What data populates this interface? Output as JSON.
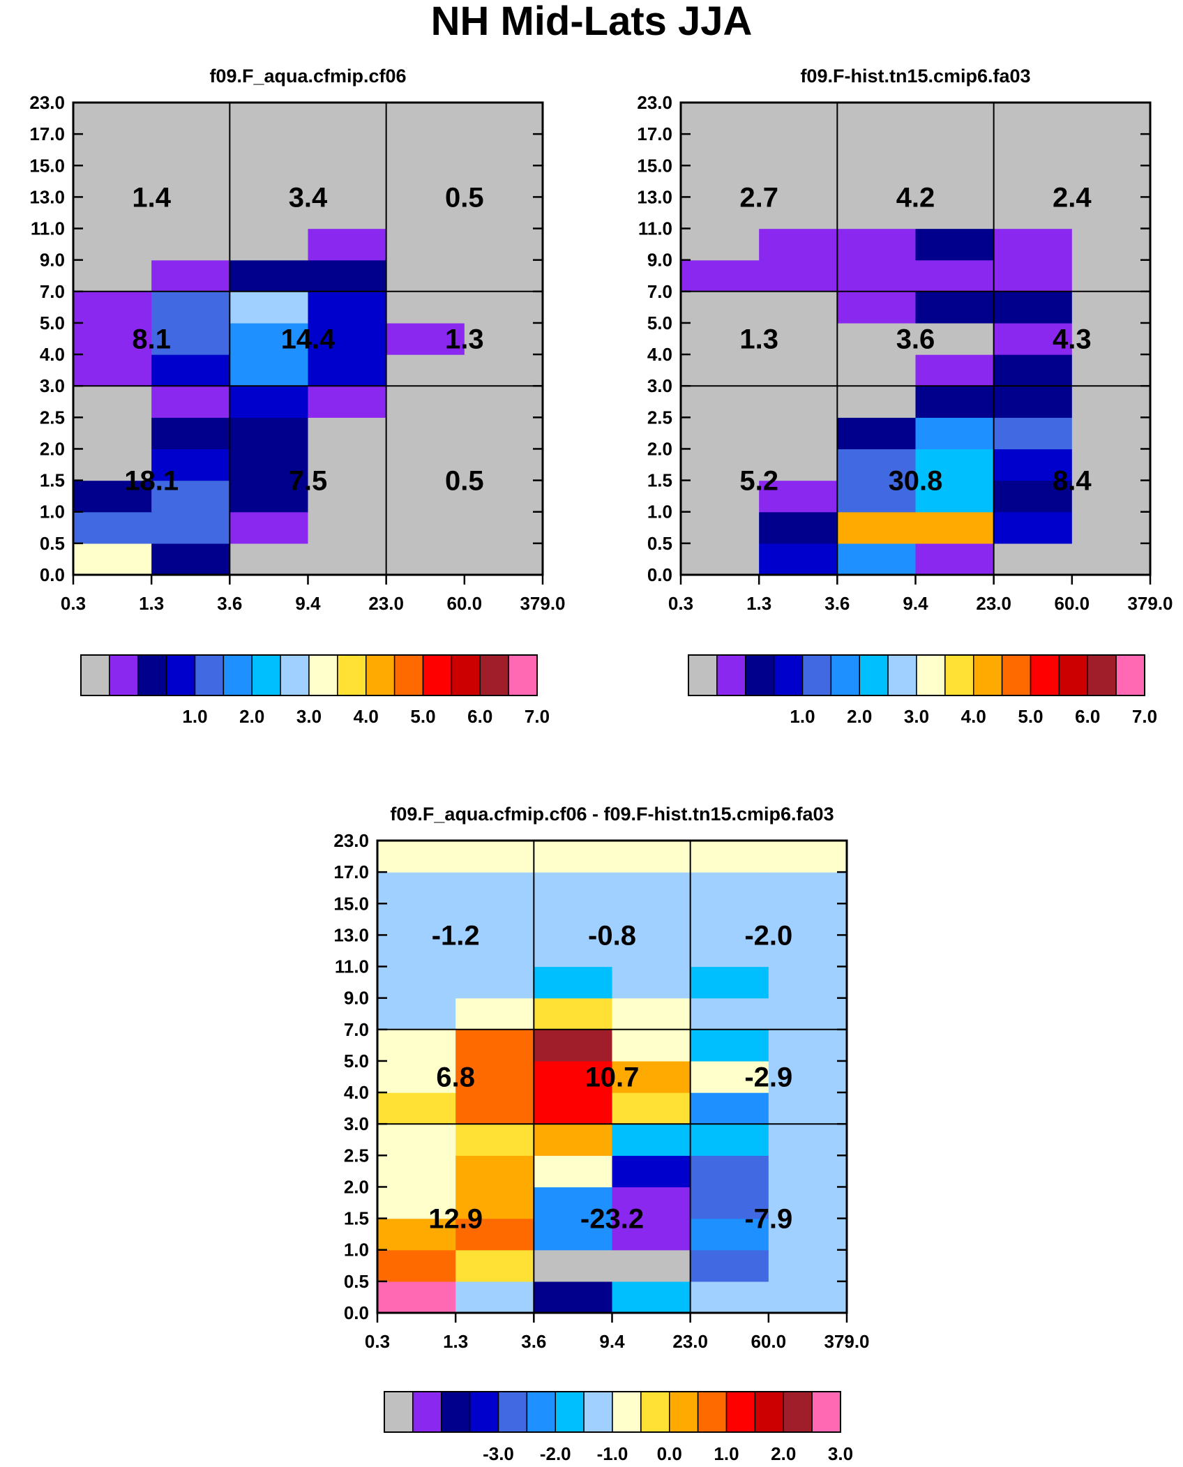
{
  "title": "NH Mid-Lats JJA",
  "x_tick_labels": [
    "0.3",
    "1.3",
    "3.6",
    "9.4",
    "23.0",
    "60.0",
    "379.0"
  ],
  "y_tick_labels": [
    "0.0",
    "0.5",
    "1.0",
    "1.5",
    "2.0",
    "2.5",
    "3.0",
    "4.0",
    "5.0",
    "7.0",
    "9.0",
    "11.0",
    "13.0",
    "15.0",
    "17.0",
    "23.0"
  ],
  "palette": [
    "#c0c0c0",
    "#8a28f0",
    "#00008c",
    "#0000cd",
    "#4169e1",
    "#1e90ff",
    "#00bfff",
    "#a0d0ff",
    "#ffffcc",
    "#ffe135",
    "#ffaa00",
    "#ff6a00",
    "#ff0000",
    "#cc0000",
    "#a01e2a",
    "#ff69b4"
  ],
  "chart_data": [
    {
      "type": "heatmap",
      "title": "f09.F_aqua.cfmip.cf06",
      "x_edges": [
        "0.3",
        "1.3",
        "3.6",
        "9.4",
        "23.0",
        "60.0",
        "379.0"
      ],
      "y_edges": [
        "0.0",
        "0.5",
        "1.0",
        "1.5",
        "2.0",
        "2.5",
        "3.0",
        "4.0",
        "5.0",
        "7.0",
        "9.0",
        "11.0",
        "13.0",
        "15.0",
        "17.0",
        "23.0"
      ],
      "cell_color_index_rows_bottom_to_top": [
        [
          8,
          2,
          0,
          0,
          0,
          0
        ],
        [
          4,
          4,
          1,
          0,
          0,
          0
        ],
        [
          2,
          4,
          2,
          0,
          0,
          0
        ],
        [
          0,
          3,
          2,
          0,
          0,
          0
        ],
        [
          0,
          2,
          2,
          0,
          0,
          0
        ],
        [
          0,
          1,
          3,
          1,
          0,
          0
        ],
        [
          1,
          3,
          5,
          3,
          0,
          0
        ],
        [
          1,
          4,
          5,
          3,
          1,
          0
        ],
        [
          1,
          4,
          7,
          3,
          0,
          0
        ],
        [
          0,
          1,
          2,
          2,
          0,
          0
        ],
        [
          0,
          0,
          0,
          1,
          0,
          0
        ],
        [
          0,
          0,
          0,
          0,
          0,
          0
        ],
        [
          0,
          0,
          0,
          0,
          0,
          0
        ],
        [
          0,
          0,
          0,
          0,
          0,
          0
        ],
        [
          0,
          0,
          0,
          0,
          0,
          0
        ]
      ],
      "group_labels_rows_bottom_to_top": [
        [
          "18.1",
          "7.5",
          "0.5"
        ],
        [
          "8.1",
          "14.4",
          "1.3"
        ],
        [
          "1.4",
          "3.4",
          "0.5"
        ]
      ],
      "colorbar": {
        "labels": [
          "1.0",
          "2.0",
          "3.0",
          "4.0",
          "5.0",
          "6.0",
          "7.0"
        ],
        "levels": [
          1.0,
          2.0,
          3.0,
          4.0,
          5.0,
          6.0,
          7.0
        ]
      }
    },
    {
      "type": "heatmap",
      "title": "f09.F-hist.tn15.cmip6.fa03",
      "x_edges": [
        "0.3",
        "1.3",
        "3.6",
        "9.4",
        "23.0",
        "60.0",
        "379.0"
      ],
      "y_edges": [
        "0.0",
        "0.5",
        "1.0",
        "1.5",
        "2.0",
        "2.5",
        "3.0",
        "4.0",
        "5.0",
        "7.0",
        "9.0",
        "11.0",
        "13.0",
        "15.0",
        "17.0",
        "23.0"
      ],
      "cell_color_index_rows_bottom_to_top": [
        [
          0,
          3,
          5,
          1,
          0,
          0
        ],
        [
          0,
          2,
          10,
          10,
          3,
          0
        ],
        [
          0,
          1,
          4,
          6,
          2,
          0
        ],
        [
          0,
          0,
          4,
          6,
          3,
          0
        ],
        [
          0,
          0,
          2,
          5,
          4,
          0
        ],
        [
          0,
          0,
          0,
          2,
          2,
          0
        ],
        [
          0,
          0,
          0,
          1,
          2,
          0
        ],
        [
          0,
          0,
          0,
          0,
          1,
          0
        ],
        [
          0,
          0,
          1,
          2,
          2,
          0
        ],
        [
          1,
          1,
          1,
          1,
          1,
          0
        ],
        [
          0,
          1,
          1,
          2,
          1,
          0
        ],
        [
          0,
          0,
          0,
          0,
          0,
          0
        ],
        [
          0,
          0,
          0,
          0,
          0,
          0
        ],
        [
          0,
          0,
          0,
          0,
          0,
          0
        ],
        [
          0,
          0,
          0,
          0,
          0,
          0
        ]
      ],
      "group_labels_rows_bottom_to_top": [
        [
          "5.2",
          "30.8",
          "8.4"
        ],
        [
          "1.3",
          "3.6",
          "4.3"
        ],
        [
          "2.7",
          "4.2",
          "2.4"
        ]
      ],
      "colorbar": {
        "labels": [
          "1.0",
          "2.0",
          "3.0",
          "4.0",
          "5.0",
          "6.0",
          "7.0"
        ],
        "levels": [
          1.0,
          2.0,
          3.0,
          4.0,
          5.0,
          6.0,
          7.0
        ]
      }
    },
    {
      "type": "heatmap",
      "title": "f09.F_aqua.cfmip.cf06 - f09.F-hist.tn15.cmip6.fa03",
      "x_edges": [
        "0.3",
        "1.3",
        "3.6",
        "9.4",
        "23.0",
        "60.0",
        "379.0"
      ],
      "y_edges": [
        "0.0",
        "0.5",
        "1.0",
        "1.5",
        "2.0",
        "2.5",
        "3.0",
        "4.0",
        "5.0",
        "7.0",
        "9.0",
        "11.0",
        "13.0",
        "15.0",
        "17.0",
        "23.0"
      ],
      "cell_color_index_rows_bottom_to_top": [
        [
          15,
          7,
          2,
          6,
          7,
          7
        ],
        [
          11,
          9,
          0,
          0,
          4,
          7
        ],
        [
          10,
          11,
          5,
          1,
          5,
          7
        ],
        [
          8,
          10,
          5,
          1,
          4,
          7
        ],
        [
          8,
          10,
          8,
          3,
          4,
          7
        ],
        [
          8,
          9,
          10,
          6,
          6,
          7
        ],
        [
          9,
          11,
          12,
          9,
          5,
          7
        ],
        [
          8,
          11,
          12,
          10,
          8,
          7
        ],
        [
          8,
          11,
          14,
          8,
          6,
          7
        ],
        [
          7,
          8,
          9,
          8,
          7,
          7
        ],
        [
          7,
          7,
          6,
          7,
          6,
          7
        ],
        [
          7,
          7,
          7,
          7,
          7,
          7
        ],
        [
          7,
          7,
          7,
          7,
          7,
          7
        ],
        [
          7,
          7,
          7,
          7,
          7,
          7
        ],
        [
          8,
          8,
          8,
          8,
          8,
          8
        ]
      ],
      "group_labels_rows_bottom_to_top": [
        [
          "12.9",
          "-23.2",
          "-7.9"
        ],
        [
          "6.8",
          "10.7",
          "-2.9"
        ],
        [
          "-1.2",
          "-0.8",
          "-2.0"
        ]
      ],
      "colorbar": {
        "labels": [
          "-3.0",
          "-2.0",
          "-1.0",
          "0.0",
          "1.0",
          "2.0",
          "3.0"
        ],
        "levels": [
          -3.0,
          -2.0,
          -1.0,
          0.0,
          1.0,
          2.0,
          3.0
        ]
      }
    }
  ]
}
